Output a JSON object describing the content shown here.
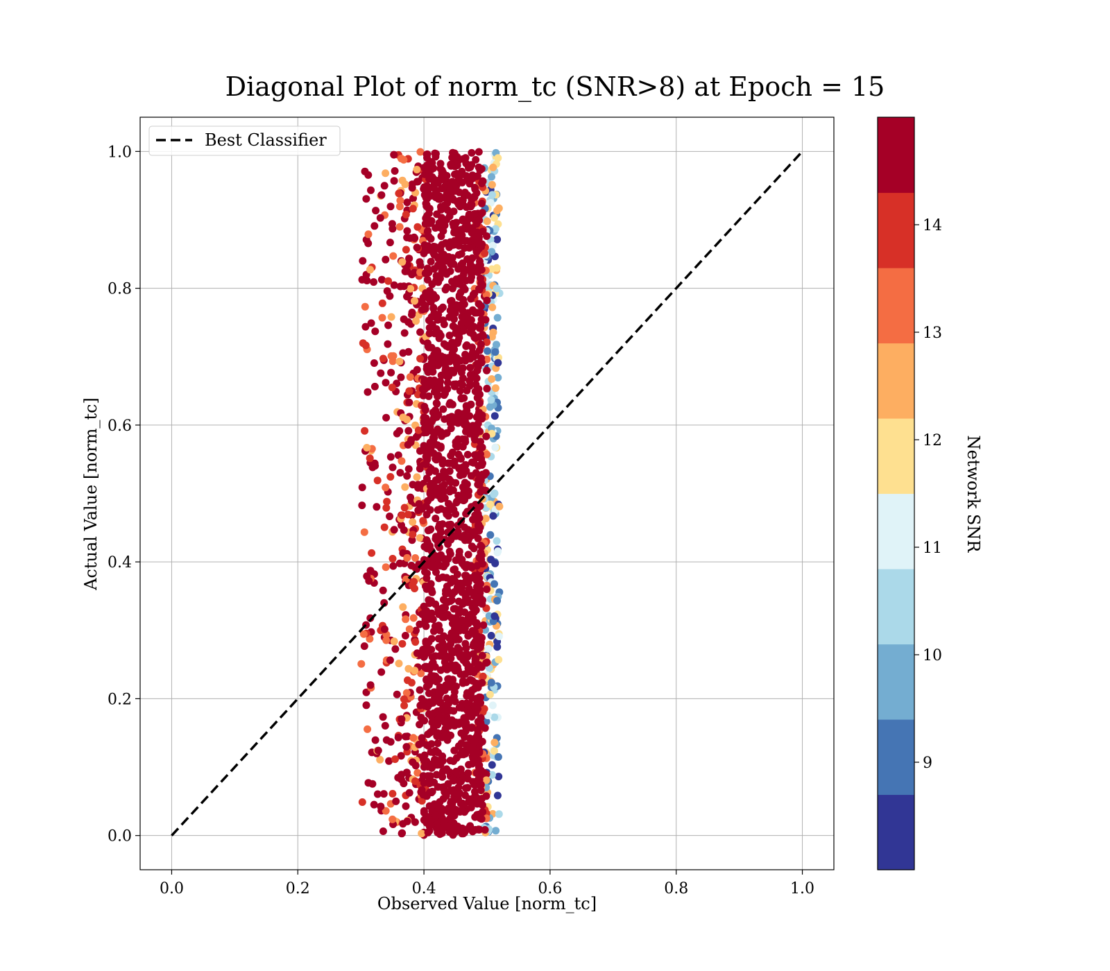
{
  "chart_data": {
    "type": "scatter",
    "title": "Diagonal Plot of norm_tc (SNR>8) at Epoch = 15",
    "xlabel": "Observed Value [norm_tc]",
    "ylabel": "Actual Value [norm_tc]",
    "xlim": [
      -0.05,
      1.05
    ],
    "ylim": [
      -0.05,
      1.05
    ],
    "xticks": [
      0.0,
      0.2,
      0.4,
      0.6,
      0.8,
      1.0
    ],
    "xtick_labels": [
      "0.0",
      "0.2",
      "0.4",
      "0.6",
      "0.8",
      "1.0"
    ],
    "yticks": [
      0.0,
      0.2,
      0.4,
      0.6,
      0.8,
      1.0
    ],
    "ytick_labels": [
      "0.0",
      "0.2",
      "0.4",
      "0.6",
      "0.8",
      "1.0"
    ],
    "grid": true,
    "legend": {
      "position": "upper-left",
      "entries": [
        {
          "label": "Best Classifier",
          "style": "dashed",
          "color": "#000000"
        }
      ]
    },
    "reference_line": {
      "name": "Best Classifier",
      "x": [
        0.0,
        1.0
      ],
      "y": [
        0.0,
        1.0
      ],
      "style": "dashed",
      "color": "#000000"
    },
    "scatter_summary": {
      "x_core_range": [
        0.4,
        0.5
      ],
      "x_outer_range": [
        0.3,
        0.52
      ],
      "y_range": [
        0.0,
        1.0
      ],
      "dominant_snr": "14+"
    },
    "colorbar": {
      "label": "Network SNR",
      "min": 8.0,
      "max": 15.0,
      "ticks": [
        9,
        10,
        11,
        12,
        13,
        14
      ],
      "tick_labels": [
        "9",
        "10",
        "11",
        "12",
        "13",
        "14"
      ],
      "colors": [
        "#313695",
        "#4575b4",
        "#74add1",
        "#abd9e9",
        "#e0f3f8",
        "#fee090",
        "#fdae61",
        "#f46d43",
        "#d73027",
        "#a50026"
      ]
    }
  }
}
